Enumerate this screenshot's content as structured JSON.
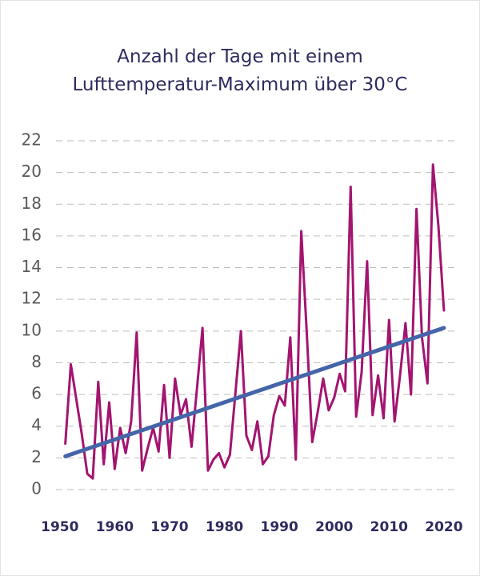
{
  "chart_data": {
    "type": "line",
    "title": [
      "Anzahl der Tage mit einem",
      "Lufttemperatur-Maximum über 30°C"
    ],
    "x": [
      1951,
      1952,
      1953,
      1954,
      1955,
      1956,
      1957,
      1958,
      1959,
      1960,
      1961,
      1962,
      1963,
      1964,
      1965,
      1966,
      1967,
      1968,
      1969,
      1970,
      1971,
      1972,
      1973,
      1974,
      1975,
      1976,
      1977,
      1978,
      1979,
      1980,
      1981,
      1982,
      1983,
      1984,
      1985,
      1986,
      1987,
      1988,
      1989,
      1990,
      1991,
      1992,
      1993,
      1994,
      1995,
      1996,
      1997,
      1998,
      1999,
      2000,
      2001,
      2002,
      2003,
      2004,
      2005,
      2006,
      2007,
      2008,
      2009,
      2010,
      2011,
      2012,
      2013,
      2014,
      2015,
      2016,
      2017,
      2018,
      2019,
      2020
    ],
    "series": [
      {
        "color": "#a3146f",
        "values": [
          2.9,
          7.9,
          5.7,
          3.5,
          1.0,
          0.7,
          6.8,
          1.6,
          5.5,
          1.3,
          3.9,
          2.3,
          4.3,
          9.9,
          1.2,
          2.6,
          3.9,
          2.4,
          6.6,
          2.0,
          7.0,
          4.7,
          5.7,
          2.7,
          6.4,
          10.2,
          1.2,
          1.9,
          2.3,
          1.4,
          2.2,
          6.1,
          10.0,
          3.4,
          2.5,
          4.3,
          1.6,
          2.1,
          4.7,
          5.9,
          5.3,
          9.6,
          1.9,
          16.3,
          9.9,
          3.0,
          4.9,
          7.0,
          5.0,
          5.8,
          7.3,
          6.2,
          19.1,
          4.6,
          7.4,
          14.4,
          4.7,
          7.2,
          4.5,
          10.7,
          4.3,
          7.2,
          10.5,
          6.0,
          17.7,
          9.6,
          6.7,
          20.5,
          16.6,
          11.3
        ]
      }
    ],
    "trend": {
      "x": [
        1951,
        2020
      ],
      "values": [
        2.1,
        10.2
      ],
      "color": "#4565a9"
    },
    "xlim": [
      1949.3,
      2022.2
    ],
    "xticks": [
      1950,
      1960,
      1970,
      1980,
      1990,
      2000,
      2010,
      2020
    ],
    "ylim": [
      0,
      22
    ],
    "yticks": [
      0,
      2,
      4,
      6,
      8,
      10,
      12,
      14,
      16,
      18,
      20,
      22
    ],
    "grid": true
  }
}
